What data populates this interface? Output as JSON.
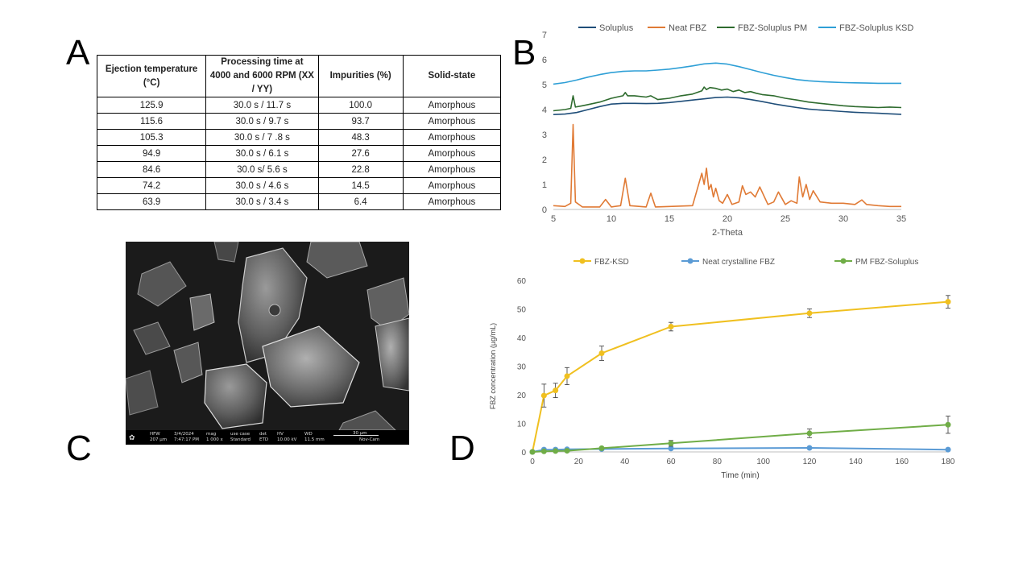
{
  "panels": {
    "a": "A",
    "b": "B",
    "c": "C",
    "d": "D"
  },
  "table": {
    "headers": [
      "Ejection temperature (°C)",
      "Processing time at 4000 and 6000 RPM (XX / YY)",
      "Impurities (%)",
      "Solid-state"
    ],
    "rows": [
      [
        "125.9",
        "30.0 s / 11.7 s",
        "100.0",
        "Amorphous"
      ],
      [
        "115.6",
        "30.0 s / 9.7 s",
        "93.7",
        "Amorphous"
      ],
      [
        "105.3",
        "30.0 s / 7 .8 s",
        "48.3",
        "Amorphous"
      ],
      [
        "94.9",
        "30.0 s / 6.1 s",
        "27.6",
        "Amorphous"
      ],
      [
        "84.6",
        "30.0 s/ 5.6 s",
        "22.8",
        "Amorphous"
      ],
      [
        "74.2",
        "30.0 s / 4.6 s",
        "14.5",
        "Amorphous"
      ],
      [
        "63.9",
        "30.0 s / 3.4 s",
        "6.4",
        "Amorphous"
      ]
    ]
  },
  "sem": {
    "labels": [
      "HFW",
      "207 µm",
      "3/4/2024",
      "7:47:17 PM",
      "mag",
      "1 000 x",
      "use case",
      "Standard",
      "det",
      "ETD",
      "HV",
      "10.00 kV",
      "WD",
      "11.5 mm",
      "30 µm",
      "Nov-Cam"
    ]
  },
  "chart_data": [
    {
      "type": "line",
      "xlabel": "2-Theta",
      "ylabel": "",
      "xlim": [
        5,
        35
      ],
      "ylim": [
        0,
        7
      ],
      "xticks": [
        5,
        10,
        15,
        20,
        25,
        30,
        35
      ],
      "yticks": [
        0,
        1,
        2,
        3,
        4,
        5,
        6,
        7
      ],
      "grid": false,
      "legend": "top",
      "series": [
        {
          "name": "Soluplus",
          "color": "#1f4e79",
          "x": [
            5,
            6,
            7,
            8,
            9,
            10,
            11,
            12,
            13,
            14,
            15,
            16,
            17,
            18,
            19,
            20,
            21,
            22,
            23,
            24,
            25,
            26,
            27,
            28,
            29,
            30,
            31,
            32,
            33,
            34,
            35
          ],
          "y": [
            3.8,
            3.82,
            3.88,
            4.0,
            4.12,
            4.22,
            4.25,
            4.25,
            4.24,
            4.25,
            4.28,
            4.33,
            4.38,
            4.43,
            4.48,
            4.5,
            4.47,
            4.4,
            4.32,
            4.23,
            4.15,
            4.08,
            4.02,
            3.98,
            3.95,
            3.92,
            3.89,
            3.87,
            3.85,
            3.83,
            3.81
          ]
        },
        {
          "name": "Neat FBZ",
          "color": "#e07a35",
          "x": [
            5,
            6,
            6.5,
            6.7,
            6.9,
            7.5,
            9,
            9.5,
            10,
            10.8,
            11.2,
            11.6,
            13,
            13.4,
            13.8,
            17,
            17.8,
            18,
            18.2,
            18.4,
            18.6,
            18.8,
            19,
            19.3,
            19.6,
            20,
            20.4,
            21,
            21.3,
            21.6,
            22,
            22.4,
            22.8,
            23.5,
            24,
            24.4,
            25,
            25.5,
            26,
            26.2,
            26.5,
            26.8,
            27.1,
            27.4,
            28,
            29,
            30,
            31,
            31.6,
            32,
            33,
            34,
            35
          ],
          "y": [
            0.15,
            0.12,
            0.25,
            3.4,
            0.3,
            0.1,
            0.1,
            0.4,
            0.1,
            0.15,
            1.25,
            0.15,
            0.1,
            0.65,
            0.1,
            0.15,
            1.45,
            1.0,
            1.65,
            0.8,
            1.0,
            0.5,
            0.85,
            0.35,
            0.25,
            0.6,
            0.2,
            0.3,
            0.95,
            0.6,
            0.7,
            0.5,
            0.9,
            0.2,
            0.3,
            0.7,
            0.2,
            0.35,
            0.25,
            1.3,
            0.5,
            1.0,
            0.4,
            0.75,
            0.3,
            0.25,
            0.25,
            0.2,
            0.38,
            0.2,
            0.15,
            0.12,
            0.12
          ]
        },
        {
          "name": "FBZ-Soluplus PM",
          "color": "#2e6b2e",
          "x": [
            5,
            6,
            6.5,
            6.7,
            6.9,
            7.5,
            8,
            9,
            10,
            11,
            11.2,
            11.4,
            12,
            13,
            13.4,
            14,
            15,
            16,
            17,
            17.8,
            18,
            18.2,
            18.5,
            19,
            19.5,
            20,
            20.5,
            21,
            21.5,
            22,
            22.5,
            23,
            24,
            25,
            26,
            27,
            28,
            29,
            30,
            31,
            32,
            33,
            34,
            35
          ],
          "y": [
            3.95,
            4.0,
            4.05,
            4.55,
            4.1,
            4.15,
            4.2,
            4.3,
            4.45,
            4.55,
            4.68,
            4.55,
            4.55,
            4.5,
            4.55,
            4.4,
            4.45,
            4.55,
            4.62,
            4.75,
            4.9,
            4.8,
            4.88,
            4.85,
            4.78,
            4.82,
            4.72,
            4.78,
            4.68,
            4.72,
            4.65,
            4.6,
            4.55,
            4.45,
            4.38,
            4.3,
            4.25,
            4.2,
            4.15,
            4.12,
            4.1,
            4.08,
            4.1,
            4.08
          ]
        },
        {
          "name": "FBZ-Soluplus KSD",
          "color": "#2e9fd6",
          "x": [
            5,
            6,
            7,
            8,
            9,
            10,
            11,
            12,
            13,
            14,
            15,
            16,
            17,
            18,
            19,
            20,
            21,
            22,
            23,
            24,
            25,
            26,
            27,
            28,
            29,
            30,
            31,
            32,
            33,
            34,
            35
          ],
          "y": [
            5.02,
            5.08,
            5.18,
            5.3,
            5.4,
            5.48,
            5.53,
            5.55,
            5.55,
            5.58,
            5.62,
            5.68,
            5.75,
            5.83,
            5.86,
            5.82,
            5.72,
            5.6,
            5.48,
            5.37,
            5.28,
            5.2,
            5.15,
            5.12,
            5.1,
            5.08,
            5.07,
            5.06,
            5.05,
            5.05,
            5.05
          ]
        }
      ]
    },
    {
      "type": "line",
      "xlabel": "Time (min)",
      "ylabel": "FBZ concentration (µg/mL)",
      "xlim": [
        0,
        180
      ],
      "ylim": [
        0,
        60
      ],
      "xticks": [
        0,
        20,
        40,
        60,
        80,
        100,
        120,
        140,
        160,
        180
      ],
      "yticks": [
        0,
        10,
        20,
        30,
        40,
        50,
        60
      ],
      "grid": false,
      "legend": "top",
      "series": [
        {
          "name": "FBZ-KSD",
          "color": "#f0c020",
          "x": [
            0,
            5,
            10,
            15,
            30,
            60,
            120,
            180
          ],
          "y": [
            0,
            19.7,
            21.5,
            26.5,
            34.5,
            43.8,
            48.5,
            52.5
          ],
          "err": [
            0,
            4,
            2.5,
            3,
            2.5,
            1.5,
            1.5,
            2.2
          ]
        },
        {
          "name": "Neat crystalline FBZ",
          "color": "#5b9bd5",
          "x": [
            0,
            5,
            10,
            15,
            30,
            60,
            120,
            180
          ],
          "y": [
            0,
            0.8,
            0.8,
            0.9,
            1.0,
            1.2,
            1.4,
            0.8
          ],
          "err": [
            0,
            0.2,
            0.2,
            0.2,
            0.2,
            0.2,
            0.2,
            0.2
          ]
        },
        {
          "name": "PM FBZ-Soluplus",
          "color": "#70ad47",
          "x": [
            0,
            5,
            10,
            15,
            30,
            60,
            120,
            180
          ],
          "y": [
            0,
            0.2,
            0.3,
            0.4,
            1.3,
            3.0,
            6.5,
            9.5
          ],
          "err": [
            0,
            0.1,
            0.1,
            0.2,
            0.3,
            1.0,
            1.5,
            3.0
          ]
        }
      ]
    }
  ]
}
